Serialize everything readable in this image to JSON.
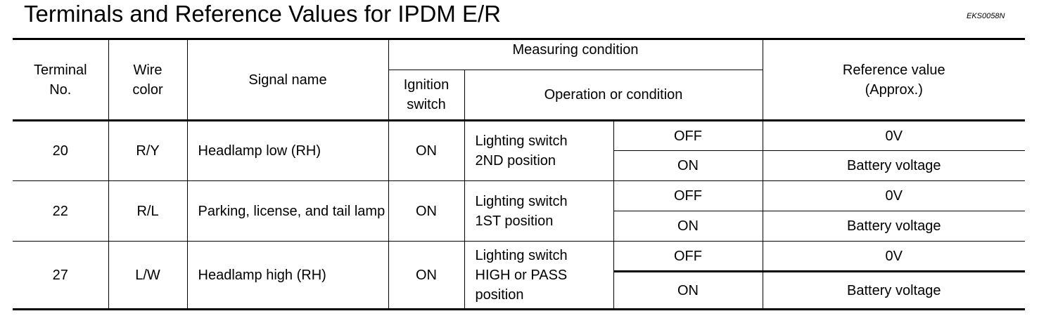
{
  "title": "Terminals and Reference Values for IPDM E/R",
  "code": "EKS0058N",
  "headers": {
    "terminal": "Terminal No.",
    "wire": "Wire color",
    "signal": "Signal name",
    "measuring": "Measuring condition",
    "ignition": "Ignition switch",
    "operation": "Operation or condition",
    "reference": "Reference value (Approx.)"
  },
  "rows": [
    {
      "terminal": "20",
      "wire": "R/Y",
      "signal": "Headlamp low (RH)",
      "ignition": "ON",
      "operation": "Lighting switch 2ND position",
      "states": [
        {
          "state": "OFF",
          "value": "0V"
        },
        {
          "state": "ON",
          "value": "Battery voltage"
        }
      ]
    },
    {
      "terminal": "22",
      "wire": "R/L",
      "signal": "Parking, license, and tail lamp",
      "ignition": "ON",
      "operation": "Lighting switch 1ST position",
      "states": [
        {
          "state": "OFF",
          "value": "0V"
        },
        {
          "state": "ON",
          "value": "Battery voltage"
        }
      ]
    },
    {
      "terminal": "27",
      "wire": "L/W",
      "signal": "Headlamp high (RH)",
      "ignition": "ON",
      "operation": "Lighting switch HIGH or PASS position",
      "states": [
        {
          "state": "OFF",
          "value": "0V"
        },
        {
          "state": "ON",
          "value": "Battery voltage"
        }
      ]
    }
  ]
}
